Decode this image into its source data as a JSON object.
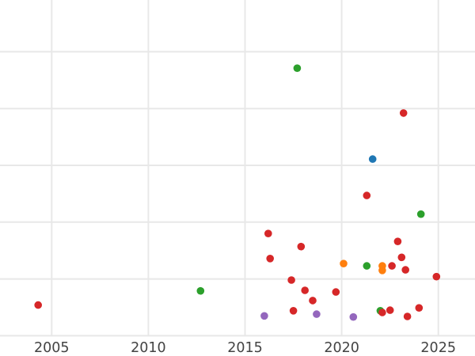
{
  "figure": {
    "background": "#ffffff",
    "grid_color": "#e8e8e8",
    "tick_label_color": "#434343"
  },
  "chart_data": {
    "type": "scatter",
    "title": "",
    "xlabel": "",
    "ylabel": "",
    "x_tick_labels": [
      "2005",
      "2010",
      "2015",
      "2020",
      "2025"
    ],
    "x_ticks": [
      2005,
      2010,
      2015,
      2020,
      2025
    ],
    "x_range_visible": [
      2002.3,
      2026.9
    ],
    "y_axis_note": "y-axis tick labels are cropped out of view; y values are expressed in units of one horizontal gridline spacing measured up from the bottom gridline",
    "y_gridline_units": [
      0,
      1,
      2,
      3,
      4,
      5
    ],
    "grid": true,
    "legend": "none",
    "marker": "circle",
    "marker_radius_px": 4.8,
    "series": [
      {
        "name": "green",
        "color": "#2ca02c",
        "points": [
          [
            2012.7,
            0.79
          ],
          [
            2017.7,
            4.71
          ],
          [
            2021.3,
            1.23
          ],
          [
            2022.0,
            0.44
          ],
          [
            2024.1,
            2.14
          ]
        ]
      },
      {
        "name": "orange",
        "color": "#ff7f0e",
        "points": [
          [
            2020.1,
            1.27
          ],
          [
            2022.1,
            1.23
          ],
          [
            2022.1,
            1.15
          ]
        ]
      },
      {
        "name": "purple",
        "color": "#9467bd",
        "points": [
          [
            2016.0,
            0.35
          ],
          [
            2018.7,
            0.38
          ],
          [
            2020.6,
            0.33
          ]
        ]
      },
      {
        "name": "blue",
        "color": "#1f77b4",
        "points": [
          [
            2021.6,
            3.11
          ]
        ]
      },
      {
        "name": "red",
        "color": "#d62728",
        "points": [
          [
            2004.3,
            0.54
          ],
          [
            2016.2,
            1.8
          ],
          [
            2016.3,
            1.36
          ],
          [
            2017.4,
            0.98
          ],
          [
            2017.5,
            0.44
          ],
          [
            2017.9,
            1.57
          ],
          [
            2018.1,
            0.8
          ],
          [
            2018.5,
            0.62
          ],
          [
            2019.7,
            0.77
          ],
          [
            2021.3,
            2.47
          ],
          [
            2022.1,
            0.41
          ],
          [
            2022.5,
            0.45
          ],
          [
            2022.6,
            1.23
          ],
          [
            2022.9,
            1.66
          ],
          [
            2023.1,
            1.38
          ],
          [
            2023.2,
            3.92
          ],
          [
            2023.3,
            1.16
          ],
          [
            2023.4,
            0.34
          ],
          [
            2024.0,
            0.49
          ],
          [
            2024.9,
            1.04
          ]
        ]
      }
    ]
  }
}
